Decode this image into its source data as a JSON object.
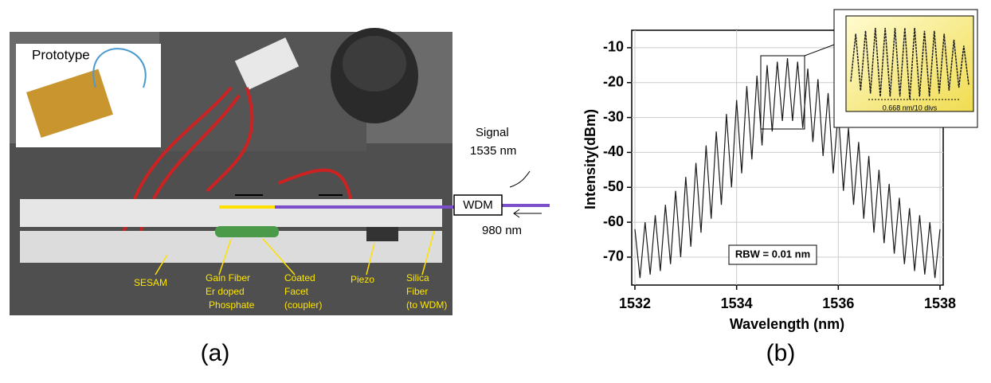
{
  "photo": {
    "inset_label": "Prototype",
    "sesam": "SESAM",
    "gain_fiber": [
      "Gain Fiber",
      "Er doped",
      "Phosphate"
    ],
    "coated_facet": [
      "Coated",
      "Facet",
      "(coupler)"
    ],
    "piezo": "Piezo",
    "silica_fiber": [
      "Silica",
      "Fiber",
      "(to WDM)"
    ],
    "signal": [
      "Signal",
      "1535 nm"
    ],
    "pump": "980 nm",
    "wdm": "WDM",
    "panel_label": "(a)"
  },
  "chart_data": {
    "type": "line",
    "panel_label": "(b)",
    "x_label": "Wavelength (nm)",
    "y_label": "Intensity(dBm)",
    "annotation": "RBW = 0.01 nm",
    "xlim": [
      1532,
      1538
    ],
    "xticks": [
      1532,
      1534,
      1536,
      1538
    ],
    "ylim": [
      -78,
      -5
    ],
    "yticks": [
      -10,
      -20,
      -30,
      -40,
      -50,
      -60,
      -70
    ],
    "grid": true,
    "series": [
      {
        "color": "#1a1a1a",
        "x": [
          1532.0,
          1532.1,
          1532.2,
          1532.3,
          1532.4,
          1532.5,
          1532.6,
          1532.7,
          1532.8,
          1532.9,
          1533.0,
          1533.1,
          1533.2,
          1533.3,
          1533.4,
          1533.5,
          1533.6,
          1533.7,
          1533.8,
          1533.9,
          1534.0,
          1534.1,
          1534.2,
          1534.3,
          1534.4,
          1534.5,
          1534.6,
          1534.7,
          1534.8,
          1534.9,
          1535.0,
          1535.1,
          1535.2,
          1535.3,
          1535.4,
          1535.5,
          1535.6,
          1535.7,
          1535.8,
          1535.9,
          1536.0,
          1536.1,
          1536.2,
          1536.3,
          1536.4,
          1536.5,
          1536.6,
          1536.7,
          1536.8,
          1536.9,
          1537.0,
          1537.1,
          1537.2,
          1537.3,
          1537.4,
          1537.5,
          1537.6,
          1537.7,
          1537.8,
          1537.9,
          1538.0
        ],
        "values": [
          -62,
          -76,
          -60,
          -75,
          -58,
          -74,
          -55,
          -72,
          -51,
          -70,
          -47,
          -67,
          -43,
          -63,
          -38,
          -59,
          -34,
          -55,
          -29,
          -50,
          -25,
          -46,
          -21,
          -42,
          -18,
          -38,
          -15,
          -34,
          -14,
          -31,
          -13,
          -31,
          -14,
          -33,
          -16,
          -37,
          -19,
          -41,
          -23,
          -46,
          -28,
          -51,
          -33,
          -55,
          -37,
          -59,
          -41,
          -63,
          -45,
          -66,
          -49,
          -69,
          -53,
          -72,
          -56,
          -74,
          -58,
          -75,
          -60,
          -76,
          -62
        ]
      }
    ],
    "inset": {
      "annotation": "0.668 nm/10 divs",
      "color": "#1a1a1a",
      "ylim": [
        -40,
        -8
      ],
      "values": [
        -30,
        -14,
        -33,
        -13,
        -34,
        -12,
        -35,
        -12,
        -35,
        -12,
        -35,
        -12,
        -36,
        -12,
        -35,
        -13,
        -35,
        -13,
        -34,
        -14,
        -33,
        -16,
        -32,
        -18,
        -31
      ]
    }
  }
}
